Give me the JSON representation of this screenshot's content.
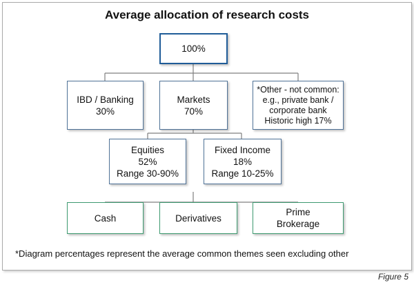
{
  "diagram": {
    "title": "Average allocation of research costs",
    "nodes": {
      "root": "100%",
      "ibd": "IBD / Banking\n30%",
      "markets": "Markets\n70%",
      "other": "*Other - not common:\ne.g., private bank /\ncorporate bank\nHistoric high 17%",
      "equities": "Equities\n52%\nRange 30-90%",
      "fixed_income": "Fixed Income\n18%\nRange 10-25%",
      "cash": "Cash",
      "derivatives": "Derivatives",
      "prime_brokerage": "Prime\nBrokerage"
    },
    "footnote": "*Diagram percentages represent the average common themes seen excluding other",
    "figure_label": "Figure 5"
  }
}
